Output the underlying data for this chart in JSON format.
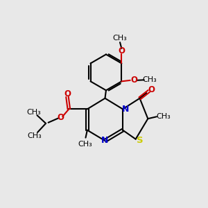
{
  "bg_color": "#e8e8e8",
  "bond_color": "#000000",
  "N_color": "#0000cc",
  "O_color": "#cc0000",
  "S_color": "#cccc00",
  "line_width": 1.5,
  "font_size": 8.5,
  "fig_size": [
    3.0,
    3.0
  ],
  "dpi": 100,
  "xlim": [
    0,
    10
  ],
  "ylim": [
    0,
    10
  ]
}
